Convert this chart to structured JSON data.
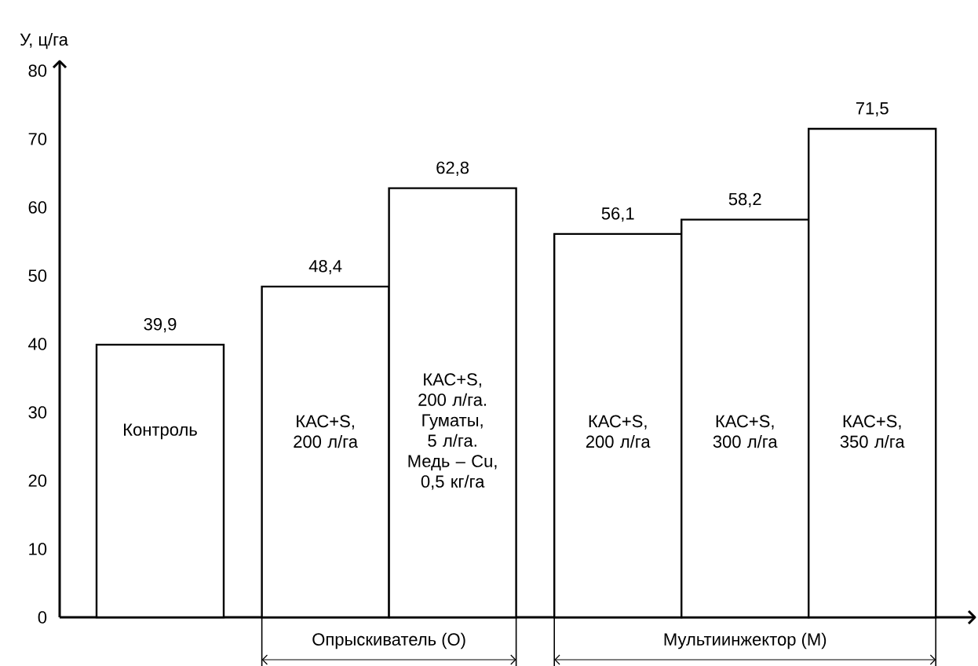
{
  "chart_data": {
    "type": "bar",
    "ylabel": "У, ц/га",
    "categories": [
      "Контроль",
      "КАС+S, 200 л/га",
      "КАС+S, 200 л/га. Гуматы, 5 л/га. Медь – Cu, 0,5 кг/га",
      "КАС+S, 200 л/га",
      "КАС+S, 300 л/га",
      "КАС+S, 350 л/га"
    ],
    "values": [
      39.9,
      48.4,
      62.8,
      56.1,
      58.2,
      71.5
    ],
    "value_labels": [
      "39,9",
      "48,4",
      "62,8",
      "56,1",
      "58,2",
      "71,5"
    ],
    "color": "#ffffff",
    "ylim": [
      0,
      80
    ],
    "yticks": [
      0,
      10,
      20,
      30,
      40,
      50,
      60,
      70,
      80
    ],
    "annotations": [
      "Опрыскиватель (О)",
      "Мультиинжектор (М)"
    ],
    "grid": false
  }
}
